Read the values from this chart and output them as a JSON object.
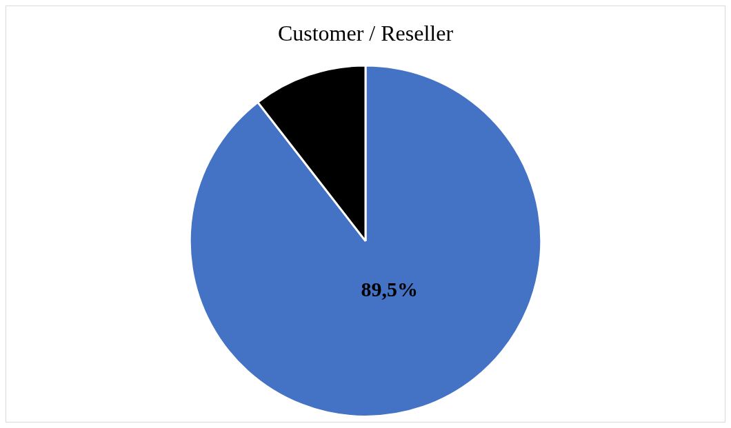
{
  "chart_data": {
    "type": "pie",
    "title": "Customer / Reseller",
    "categories": [
      null,
      null
    ],
    "values": [
      89.5,
      10.5
    ],
    "colors": [
      "#4472c4",
      "#000000"
    ],
    "value_labels": [
      "89,5%",
      null
    ],
    "legend": false
  }
}
